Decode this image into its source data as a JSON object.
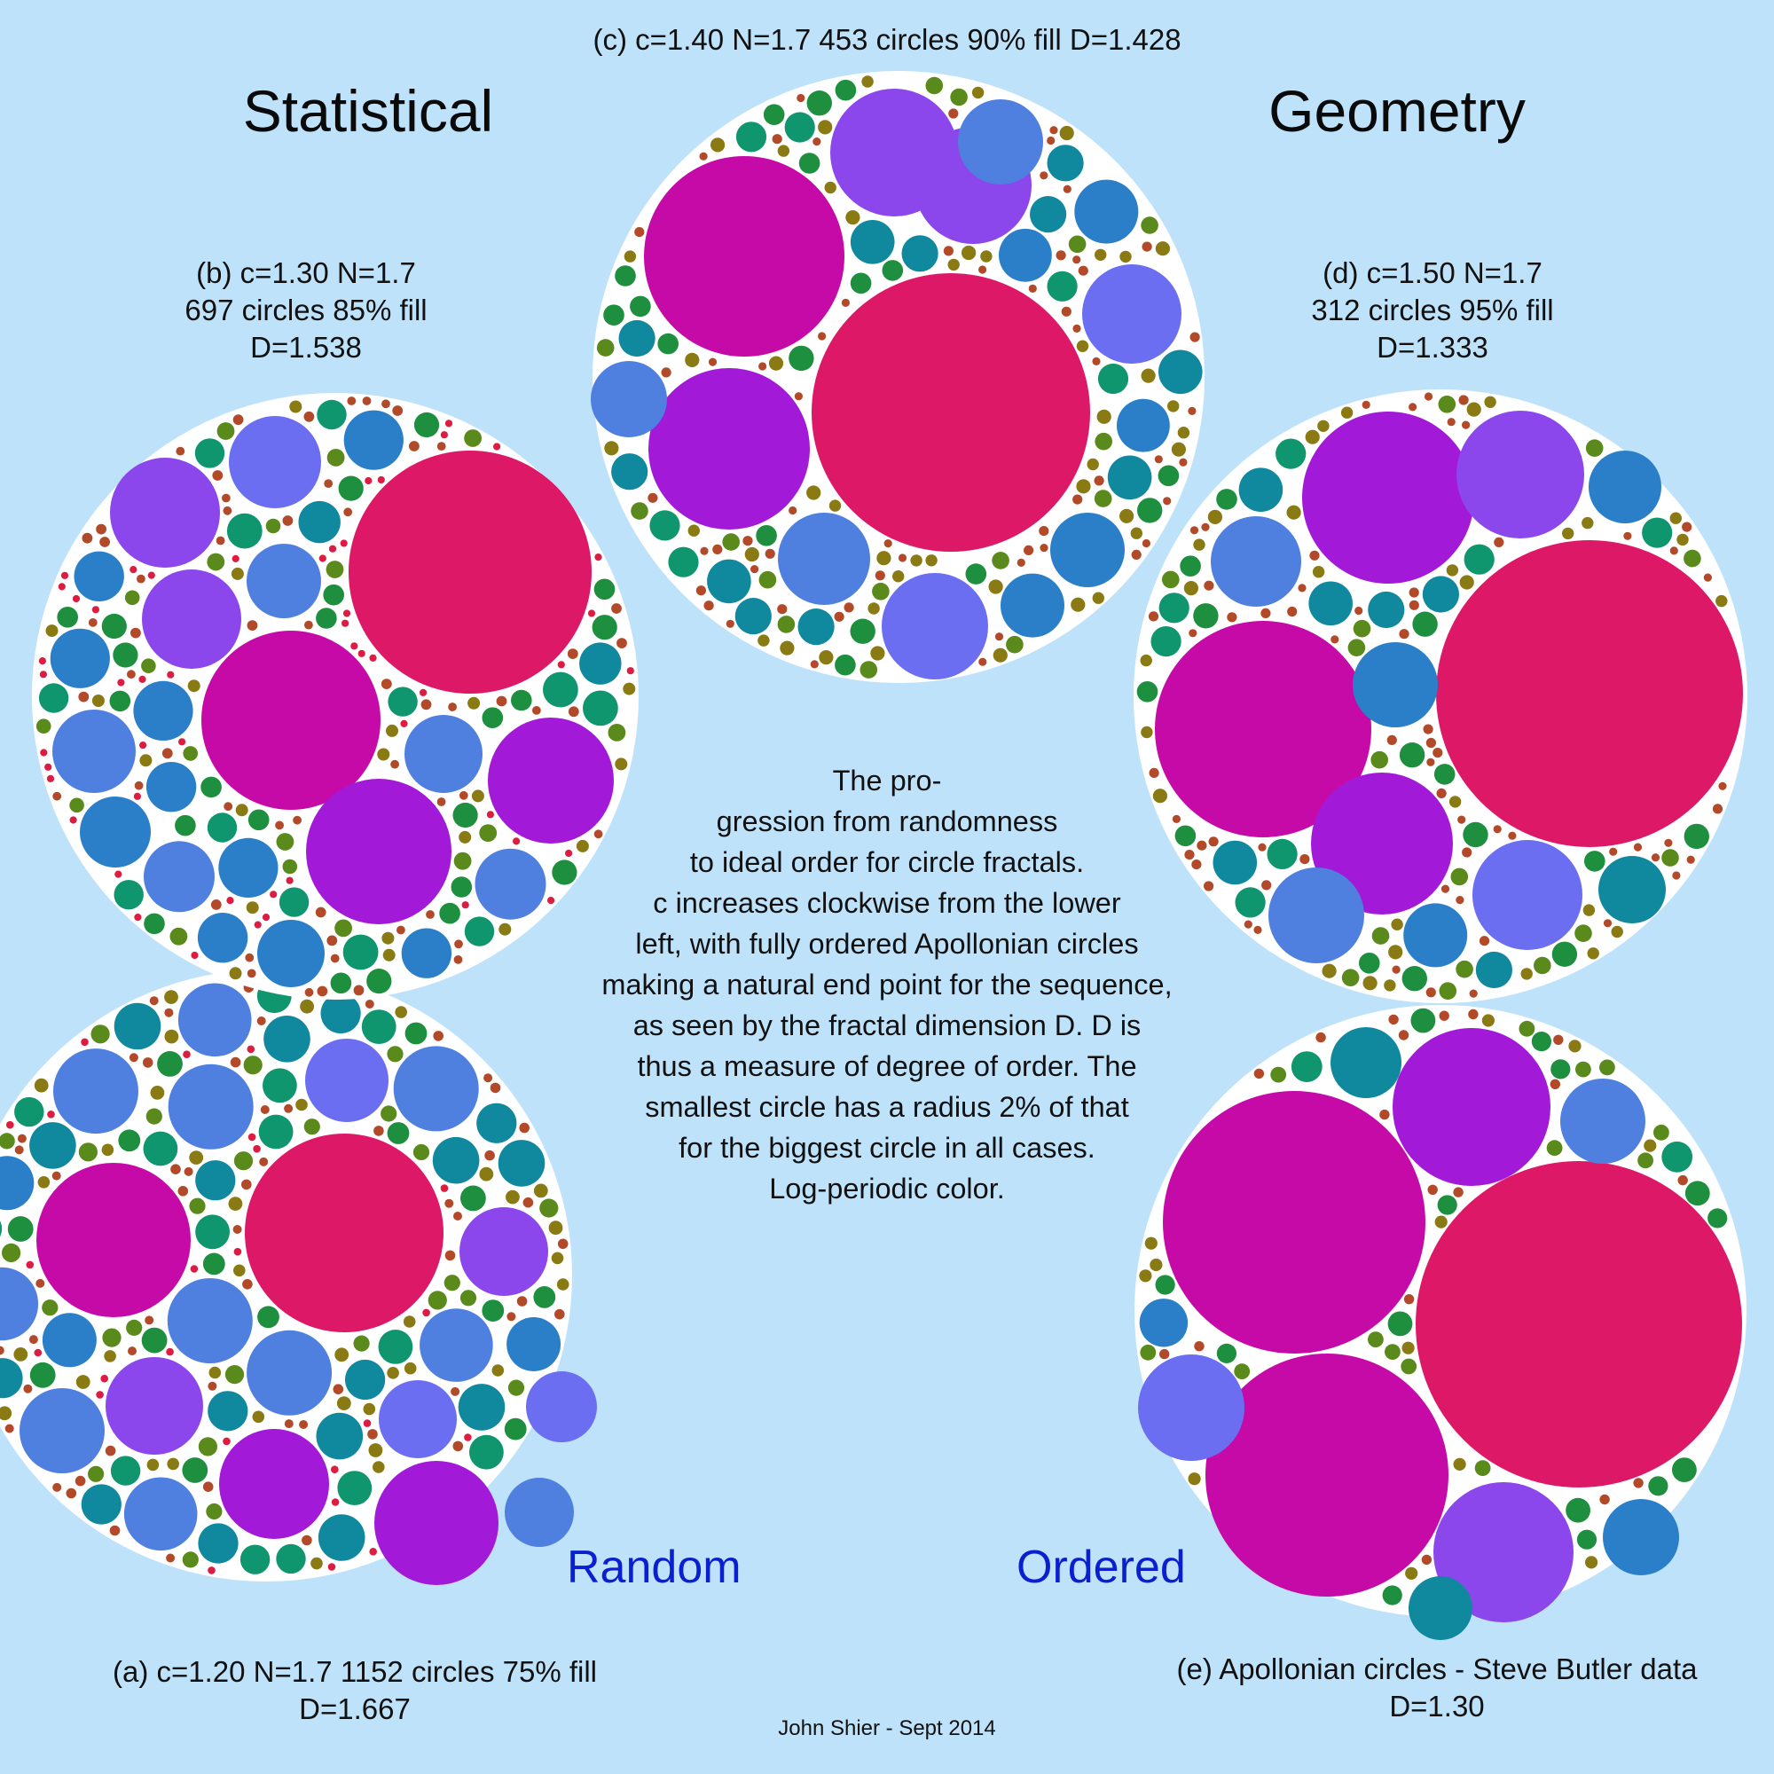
{
  "headings": {
    "left": "Statistical",
    "right": "Geometry"
  },
  "captions": {
    "c": "(c) c=1.40  N=1.7  453 circles 90% fill  D=1.428",
    "b": "(b) c=1.30 N=1.7\n697 circles  85% fill\nD=1.538",
    "d": "(d) c=1.50  N=1.7\n312 circles 95% fill\nD=1.333",
    "a": "(a) c=1.20  N=1.7  1152 circles  75% fill\nD=1.667",
    "e": "(e) Apollonian circles - Steve Butler data\nD=1.30"
  },
  "labels": {
    "random": "Random",
    "ordered": "Ordered"
  },
  "description": "The pro-\ngression from randomness\nto ideal order for circle fractals.\nc increases clockwise from the lower\nleft, with fully ordered Apollonian circles\nmaking a natural end point for the sequence,\nas seen by the fractal dimension D.  D is\nthus a measure of degree of order.  The\nsmallest circle has a radius 2% of that\nfor the biggest circle in all cases.\nLog-periodic color.",
  "credit": "John Shier - Sept 2014",
  "colors": {
    "background": "#bfe2fb",
    "disk": "#ffffff",
    "palette": [
      "#dd1866",
      "#c60aa8",
      "#a319d8",
      "#8b47ec",
      "#6b6ef0",
      "#4f80e0",
      "#2a7fc8",
      "#10889e",
      "#10966e",
      "#1e8f3e",
      "#5a8a1c",
      "#8a7a14",
      "#b24a2a",
      "#dd1c42"
    ],
    "label_blue": "#0a1fd0"
  },
  "fractals": [
    {
      "id": "a",
      "c": 1.2,
      "N": 1.7,
      "circles": 1152,
      "fill_percent": 75,
      "D": 1.667
    },
    {
      "id": "b",
      "c": 1.3,
      "N": 1.7,
      "circles": 697,
      "fill_percent": 85,
      "D": 1.538
    },
    {
      "id": "c",
      "c": 1.4,
      "N": 1.7,
      "circles": 453,
      "fill_percent": 90,
      "D": 1.428
    },
    {
      "id": "d",
      "c": 1.5,
      "N": 1.7,
      "circles": 312,
      "fill_percent": 95,
      "D": 1.333
    },
    {
      "id": "e",
      "type": "Apollonian",
      "D": 1.3
    }
  ]
}
